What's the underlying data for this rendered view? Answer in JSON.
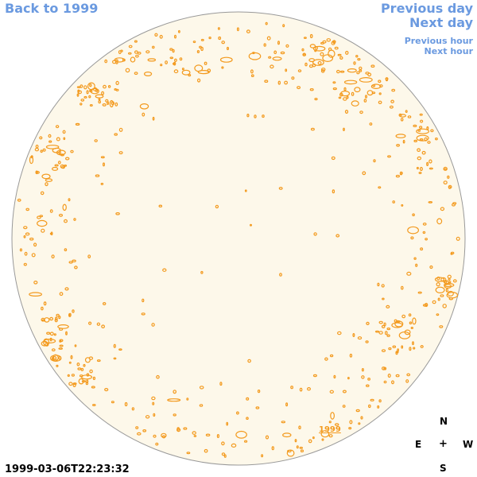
{
  "navigation": {
    "back_label": "Back to 1999",
    "prev_day_label": "Previous day",
    "next_day_label": "Next day",
    "prev_hour_label": "Previous hour",
    "next_hour_label": "Next hour"
  },
  "disk": {
    "fill_color": "#fdf8ea",
    "edge_color": "#999999",
    "contour_color": "#f39a1e"
  },
  "year_link": "1999",
  "timestamp": "1999-03-06T22:23:32",
  "compass": {
    "north": "N",
    "east": "E",
    "center": "+",
    "west": "W",
    "south": "S"
  },
  "colors": {
    "link": "#6b9ae0",
    "accent": "#f39a1e"
  }
}
